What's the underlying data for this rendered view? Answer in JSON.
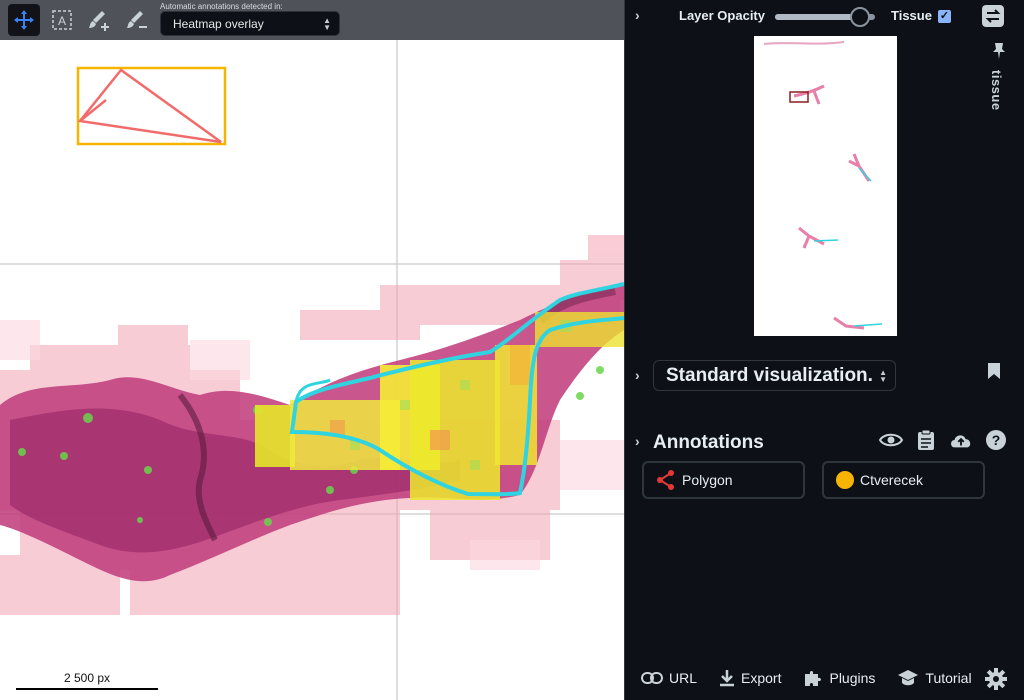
{
  "toolbar": {
    "tools": [
      {
        "name": "move-tool",
        "icon": "move-arrows-icon",
        "active": true
      },
      {
        "name": "auto-select-tool",
        "icon": "auto-select-icon",
        "active": false
      },
      {
        "name": "brush-add-tool",
        "icon": "brush-plus-icon",
        "active": false
      },
      {
        "name": "brush-remove-tool",
        "icon": "brush-minus-icon",
        "active": false
      }
    ],
    "mode_caption": "Automatic annotations detected in:",
    "mode_value": "Heatmap overlay"
  },
  "viewer": {
    "scalebar_label": "2 500 px",
    "annotation_colors": {
      "polygon": "#f26b6b",
      "box": "#f7b500",
      "outline": "#2fd4e0"
    }
  },
  "panel": {
    "layer_opacity_label": "Layer Opacity",
    "layer_opacity_value": 0.85,
    "tissue_label": "Tissue",
    "tissue_checked": true,
    "pinned_label": "tissue",
    "visualization_value": "Standard visualization.",
    "annotations_title": "Annotations",
    "annotation_icons": [
      "eye-icon",
      "clipboard-icon",
      "cloud-upload-icon",
      "help-icon"
    ],
    "annotation_items": [
      {
        "label": "Polygon",
        "icon": "polygon-icon",
        "color": "#e53935"
      },
      {
        "label": "Ctverecek",
        "icon": "circle-icon",
        "color": "#f7b500"
      }
    ],
    "footer": [
      {
        "label": "URL",
        "icon": "link-icon"
      },
      {
        "label": "Export",
        "icon": "download-icon"
      },
      {
        "label": "Plugins",
        "icon": "puzzle-icon"
      },
      {
        "label": "Tutorial",
        "icon": "graduation-cap-icon"
      }
    ]
  }
}
